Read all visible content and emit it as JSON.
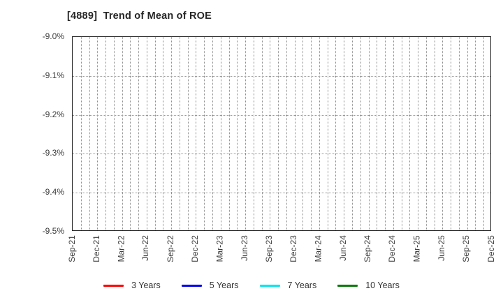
{
  "title": "[4889]  Trend of Mean of ROE",
  "chart_data": {
    "type": "line",
    "title": "[4889]  Trend of Mean of ROE",
    "xlabel": "",
    "ylabel": "",
    "x_tick_labels": [
      "Sep-21",
      "Dec-21",
      "Mar-22",
      "Jun-22",
      "Sep-22",
      "Dec-22",
      "Mar-23",
      "Jun-23",
      "Sep-23",
      "Dec-23",
      "Mar-24",
      "Jun-24",
      "Sep-24",
      "Dec-24",
      "Mar-25",
      "Jun-25",
      "Sep-25",
      "Dec-25"
    ],
    "y_tick_labels": [
      "-9.0%",
      "-9.1%",
      "-9.2%",
      "-9.3%",
      "-9.4%",
      "-9.5%"
    ],
    "ylim": [
      -9.5,
      -9.0
    ],
    "y_unit": "%",
    "grid": true,
    "x_grid_interval": "monthly",
    "legend_position": "bottom",
    "series": [
      {
        "name": "3 Years",
        "color": "#ff0000",
        "values": []
      },
      {
        "name": "5 Years",
        "color": "#0000ee",
        "values": []
      },
      {
        "name": "7 Years",
        "color": "#00e5ee",
        "values": []
      },
      {
        "name": "10 Years",
        "color": "#0b7a0b",
        "values": []
      }
    ]
  }
}
